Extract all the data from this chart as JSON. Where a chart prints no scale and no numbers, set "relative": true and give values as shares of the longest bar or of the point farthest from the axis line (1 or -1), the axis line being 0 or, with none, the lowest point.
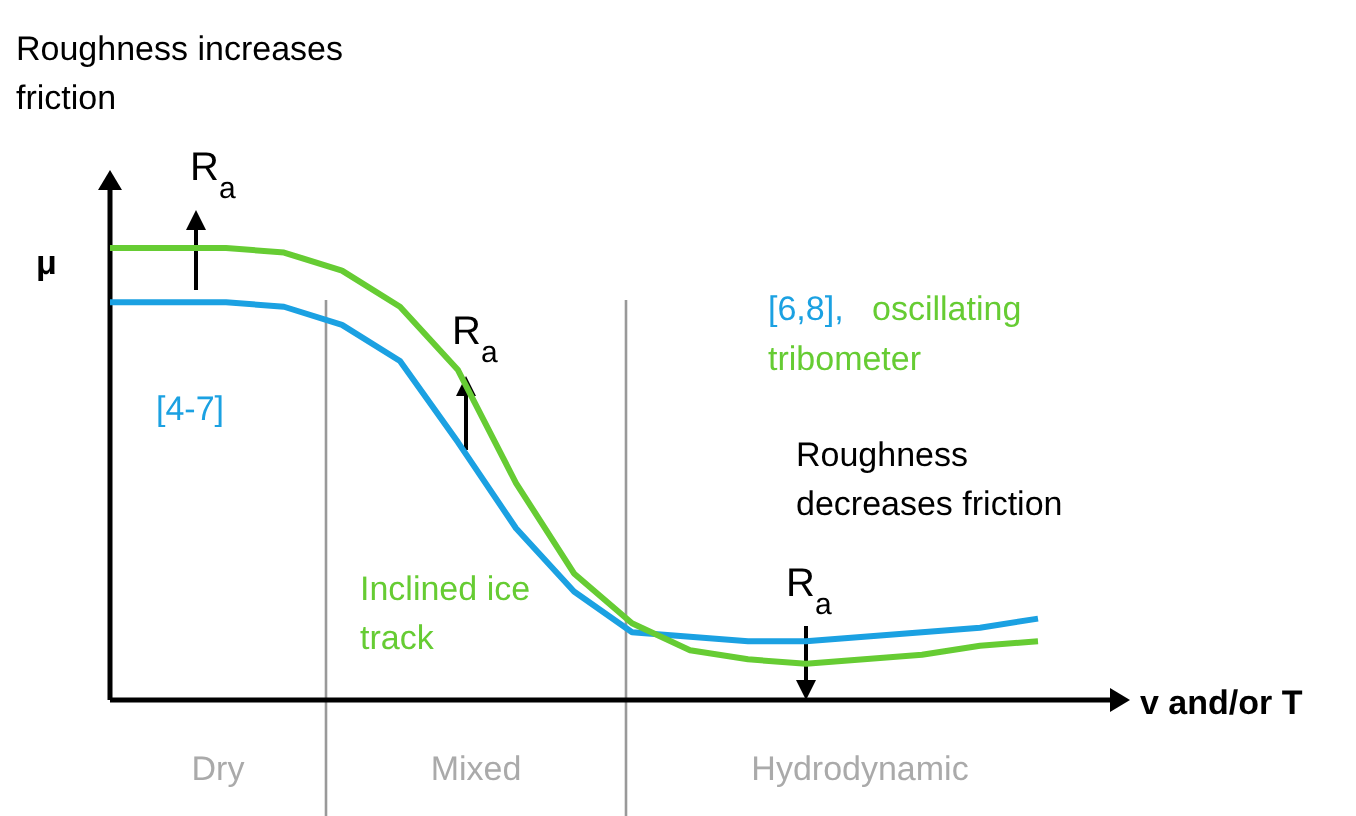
{
  "chart_data": {
    "type": "line",
    "relative": true,
    "xlabel": "v and/or T",
    "ylabel": "μ",
    "categories": [
      null,
      null,
      null,
      null,
      null,
      null,
      null,
      null,
      null,
      null,
      null,
      null,
      null,
      null,
      null,
      null,
      null
    ],
    "tick_labels": false,
    "marker": "none",
    "line_style": "solid",
    "series": [
      {
        "name": "[4-7]",
        "color": "#1ba1e2",
        "values": [
          0.88,
          0.88,
          0.88,
          0.87,
          0.83,
          0.75,
          0.57,
          0.38,
          0.24,
          0.15,
          0.14,
          0.13,
          0.13,
          0.14,
          0.15,
          0.16,
          0.18
        ]
      },
      {
        "name": "Inclined ice track",
        "color": "#66cc33",
        "values": [
          1,
          1,
          1,
          0.99,
          0.95,
          0.87,
          0.73,
          0.48,
          0.28,
          0.17,
          0.11,
          0.09,
          0.08,
          0.09,
          0.1,
          0.12,
          0.13
        ]
      }
    ],
    "annotations": [
      "Roughness increases friction",
      "[6,8],",
      "oscillating tribometer",
      "Roughness decreases friction",
      "R$_{a}$",
      "R$_{a}$",
      "R$_{a}$",
      "Dry",
      "Mixed",
      "Hydrodynamic"
    ]
  }
}
